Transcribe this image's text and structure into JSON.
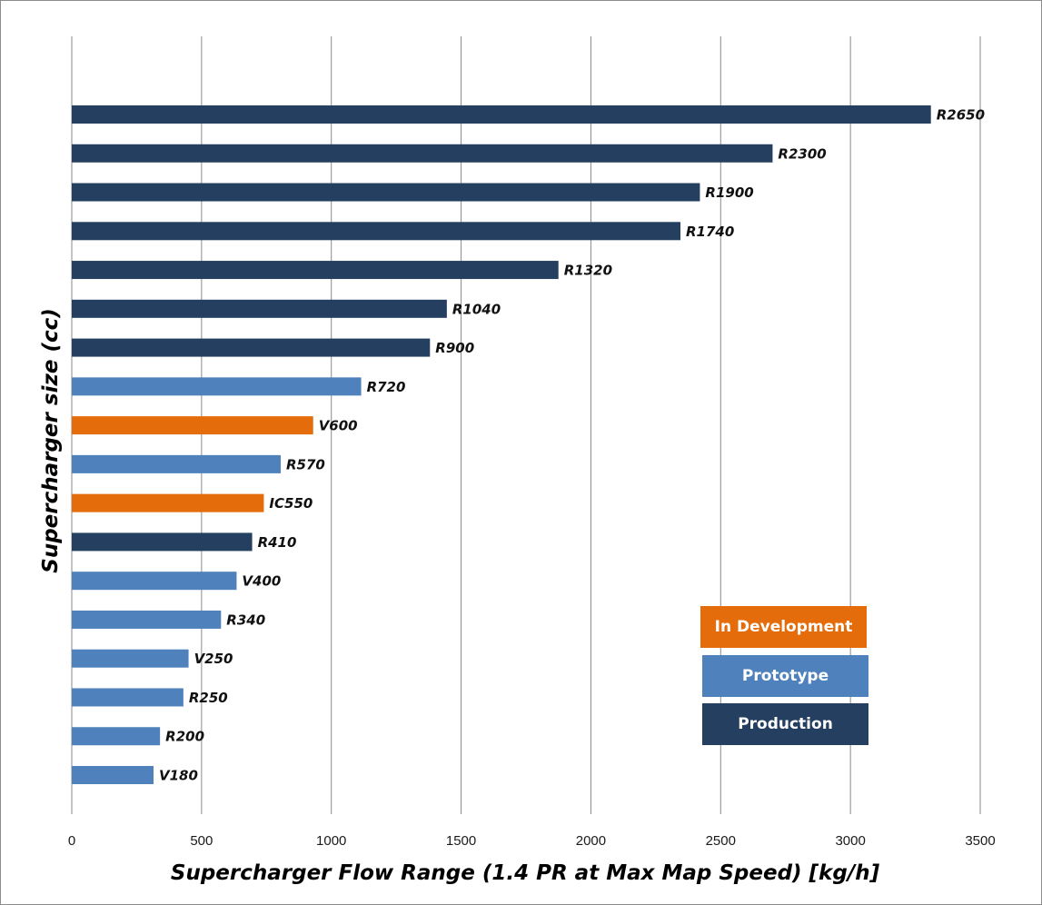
{
  "chart_data": {
    "type": "bar",
    "orientation": "horizontal",
    "title": "",
    "xlabel": "Supercharger Flow Range (1.4 PR at Max Map Speed) [kg/h]",
    "ylabel": "Supercharger size (cc)",
    "xlim": [
      0,
      3500
    ],
    "xticks": [
      0,
      500,
      1000,
      1500,
      2000,
      2500,
      3000,
      3500
    ],
    "grid": "vertical",
    "bars": [
      {
        "label": "R2650",
        "value": 3310,
        "status": "Production"
      },
      {
        "label": "R2300",
        "value": 2700,
        "status": "Production"
      },
      {
        "label": "R1900",
        "value": 2420,
        "status": "Production"
      },
      {
        "label": "R1740",
        "value": 2345,
        "status": "Production"
      },
      {
        "label": "R1320",
        "value": 1875,
        "status": "Production"
      },
      {
        "label": "R1040",
        "value": 1445,
        "status": "Production"
      },
      {
        "label": "R900",
        "value": 1380,
        "status": "Production"
      },
      {
        "label": "R720",
        "value": 1115,
        "status": "Prototype"
      },
      {
        "label": "V600",
        "value": 930,
        "status": "In Development"
      },
      {
        "label": "R570",
        "value": 805,
        "status": "Prototype"
      },
      {
        "label": "IC550",
        "value": 740,
        "status": "In Development"
      },
      {
        "label": "R410",
        "value": 695,
        "status": "Production"
      },
      {
        "label": "V400",
        "value": 635,
        "status": "Prototype"
      },
      {
        "label": "R340",
        "value": 575,
        "status": "Prototype"
      },
      {
        "label": "V250",
        "value": 450,
        "status": "Prototype"
      },
      {
        "label": "R250",
        "value": 430,
        "status": "Prototype"
      },
      {
        "label": "R200",
        "value": 340,
        "status": "Prototype"
      },
      {
        "label": "V180",
        "value": 315,
        "status": "Prototype"
      }
    ],
    "legend": {
      "placement": "bottom-right",
      "items": [
        {
          "label": "In Development",
          "color": "#E46C0A"
        },
        {
          "label": "Prototype",
          "color": "#4F81BD"
        },
        {
          "label": "Production",
          "color": "#243F60"
        }
      ]
    },
    "colors": {
      "In Development": "#E46C0A",
      "Prototype": "#4F81BD",
      "Production": "#243F60"
    }
  }
}
